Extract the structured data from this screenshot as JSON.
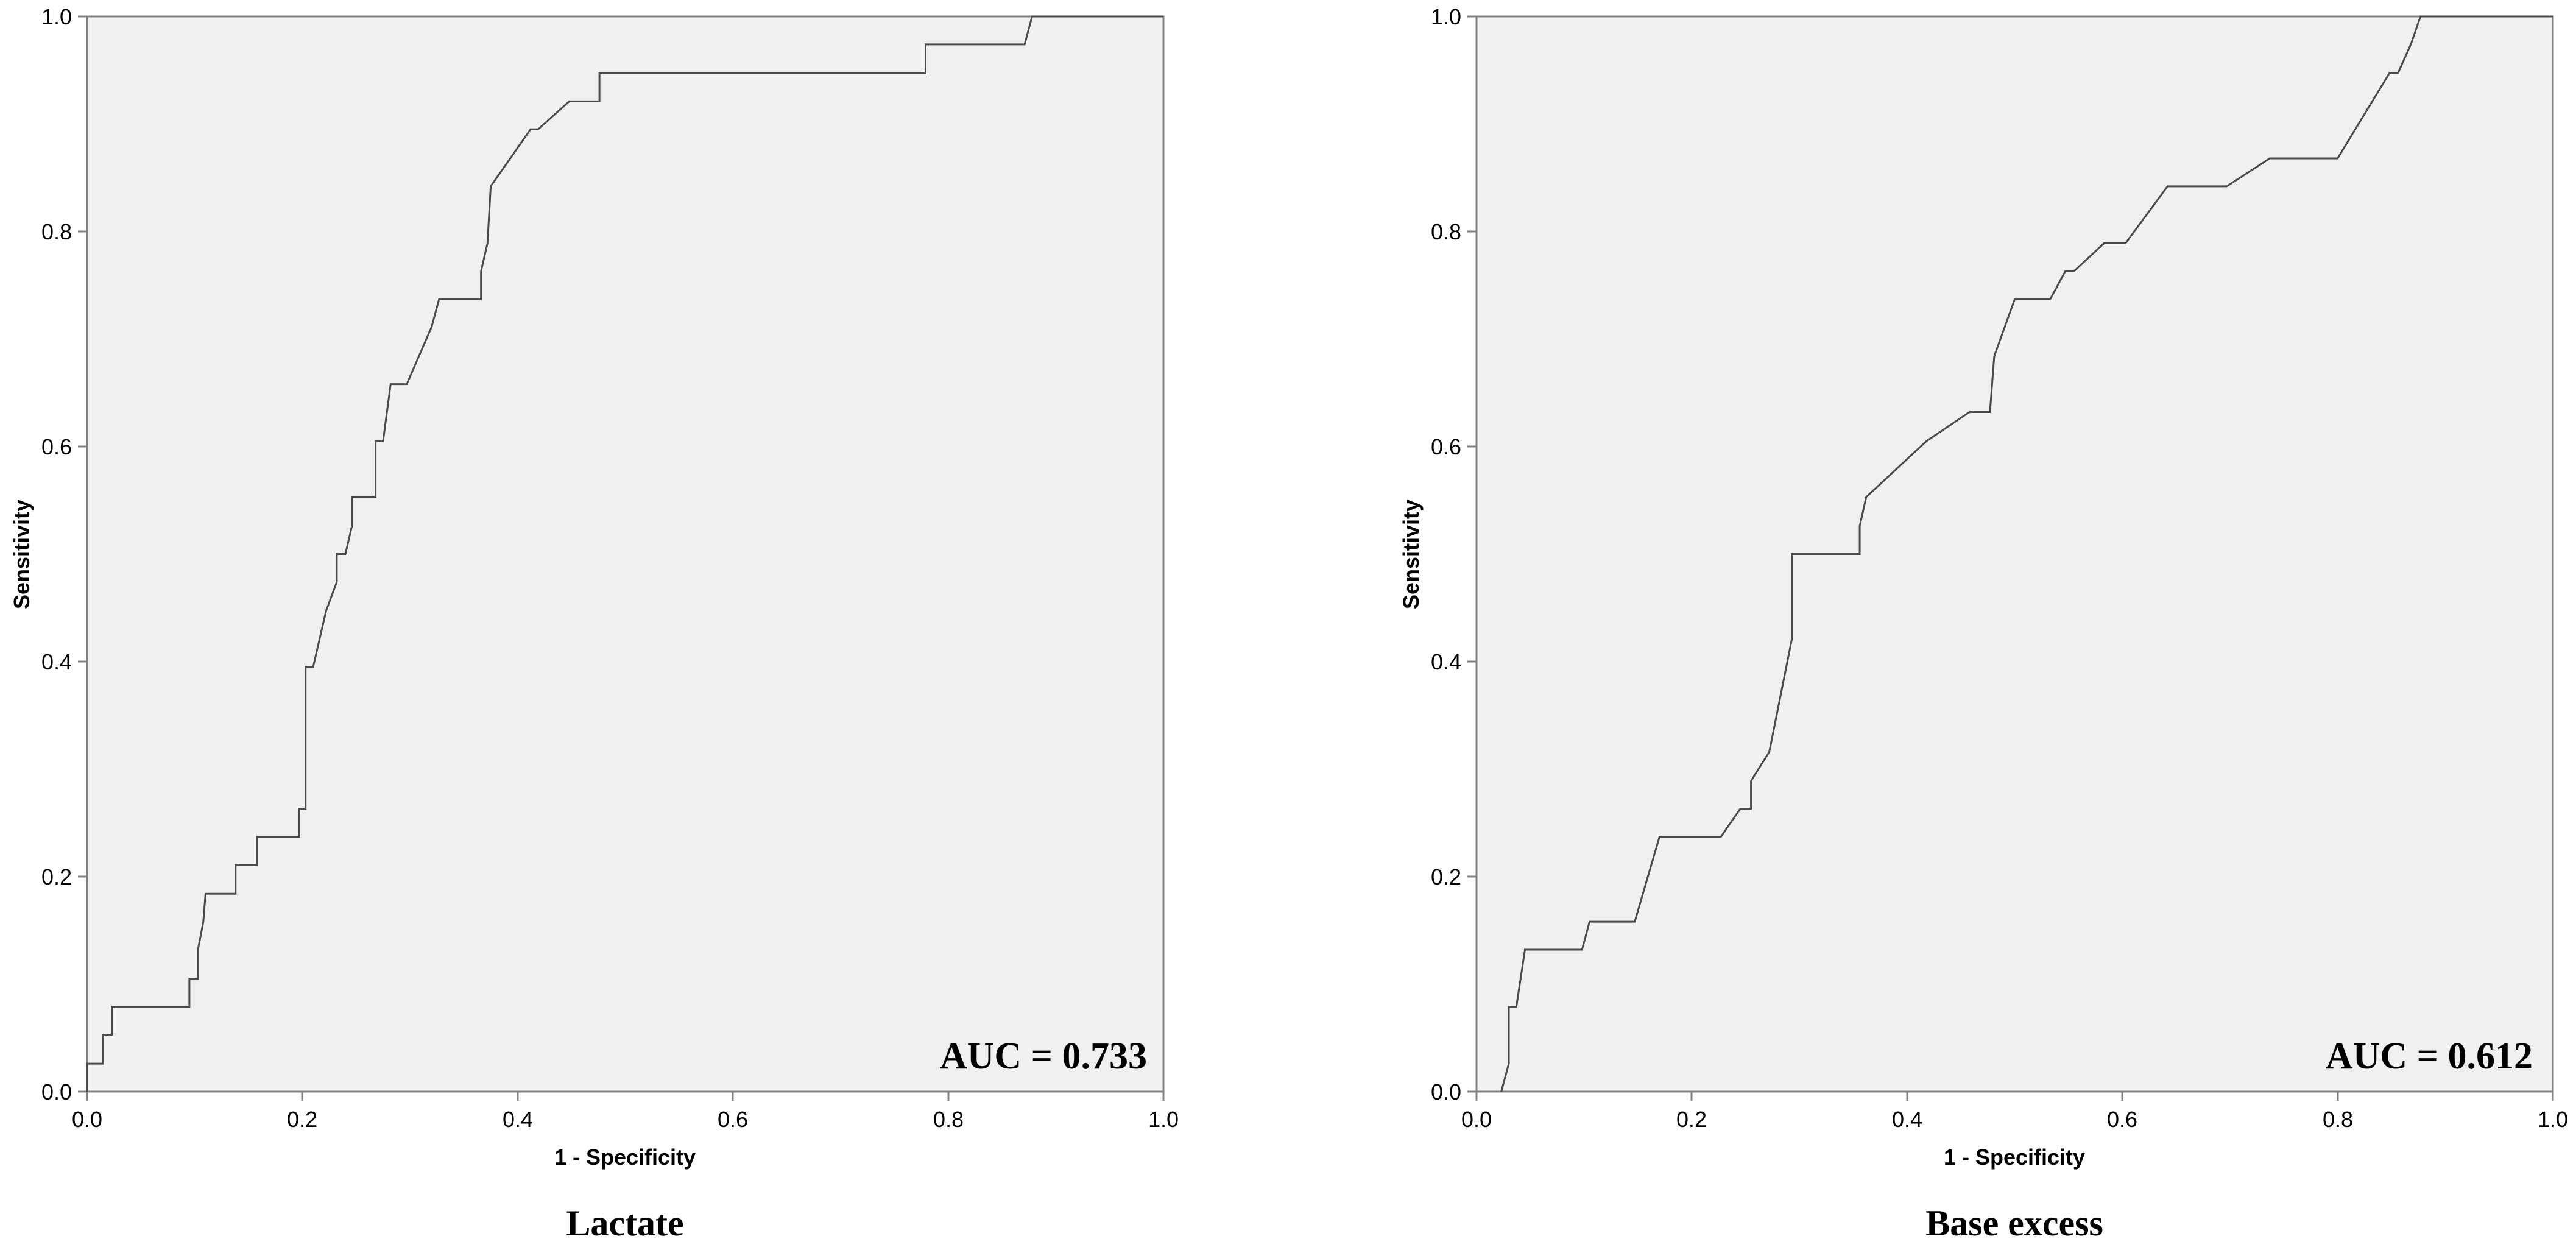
{
  "chart_data": [
    {
      "type": "line",
      "caption": "Lactate",
      "annotation": "AUC = 0.733",
      "xlabel": "1 - Specificity",
      "ylabel": "Sensitivity",
      "xlim": [
        0,
        1
      ],
      "ylim": [
        0,
        1
      ],
      "xticks": [
        "0.0",
        "0.2",
        "0.4",
        "0.6",
        "0.8",
        "1.0"
      ],
      "yticks": [
        "0.0",
        "0.2",
        "0.4",
        "0.6",
        "0.8",
        "1.0"
      ],
      "grid": false,
      "colors": {
        "plot_bg": "#f0f0f0",
        "line": "#4a4a4a",
        "frame": "#808080"
      },
      "series": [
        {
          "points": [
            [
              0.0,
              0.0
            ],
            [
              0.0,
              0.026
            ],
            [
              0.015,
              0.026
            ],
            [
              0.015,
              0.053
            ],
            [
              0.023,
              0.053
            ],
            [
              0.023,
              0.079
            ],
            [
              0.095,
              0.079
            ],
            [
              0.095,
              0.105
            ],
            [
              0.103,
              0.105
            ],
            [
              0.103,
              0.132
            ],
            [
              0.108,
              0.158
            ],
            [
              0.11,
              0.184
            ],
            [
              0.138,
              0.184
            ],
            [
              0.138,
              0.211
            ],
            [
              0.158,
              0.211
            ],
            [
              0.158,
              0.237
            ],
            [
              0.197,
              0.237
            ],
            [
              0.197,
              0.263
            ],
            [
              0.203,
              0.263
            ],
            [
              0.203,
              0.395
            ],
            [
              0.21,
              0.395
            ],
            [
              0.222,
              0.447
            ],
            [
              0.232,
              0.474
            ],
            [
              0.232,
              0.5
            ],
            [
              0.24,
              0.5
            ],
            [
              0.246,
              0.526
            ],
            [
              0.246,
              0.553
            ],
            [
              0.268,
              0.553
            ],
            [
              0.268,
              0.605
            ],
            [
              0.275,
              0.605
            ],
            [
              0.282,
              0.658
            ],
            [
              0.297,
              0.658
            ],
            [
              0.32,
              0.711
            ],
            [
              0.327,
              0.737
            ],
            [
              0.366,
              0.737
            ],
            [
              0.366,
              0.763
            ],
            [
              0.372,
              0.789
            ],
            [
              0.375,
              0.842
            ],
            [
              0.412,
              0.895
            ],
            [
              0.419,
              0.895
            ],
            [
              0.448,
              0.921
            ],
            [
              0.476,
              0.921
            ],
            [
              0.476,
              0.947
            ],
            [
              0.779,
              0.947
            ],
            [
              0.779,
              0.974
            ],
            [
              0.871,
              0.974
            ],
            [
              0.878,
              1.0
            ],
            [
              1.0,
              1.0
            ]
          ]
        }
      ]
    },
    {
      "type": "line",
      "caption": "Base excess",
      "annotation": "AUC = 0.612",
      "xlabel": "1 - Specificity",
      "ylabel": "Sensitivity",
      "xlim": [
        0,
        1
      ],
      "ylim": [
        0,
        1
      ],
      "xticks": [
        "0.0",
        "0.2",
        "0.4",
        "0.6",
        "0.8",
        "1.0"
      ],
      "yticks": [
        "0.0",
        "0.2",
        "0.4",
        "0.6",
        "0.8",
        "1.0"
      ],
      "grid": false,
      "colors": {
        "plot_bg": "#f0f0f0",
        "line": "#4a4a4a",
        "frame": "#808080"
      },
      "series": [
        {
          "points": [
            [
              0.023,
              0.0
            ],
            [
              0.03,
              0.026
            ],
            [
              0.03,
              0.079
            ],
            [
              0.037,
              0.079
            ],
            [
              0.045,
              0.132
            ],
            [
              0.098,
              0.132
            ],
            [
              0.105,
              0.158
            ],
            [
              0.147,
              0.158
            ],
            [
              0.17,
              0.237
            ],
            [
              0.227,
              0.237
            ],
            [
              0.245,
              0.263
            ],
            [
              0.255,
              0.263
            ],
            [
              0.255,
              0.289
            ],
            [
              0.272,
              0.316
            ],
            [
              0.293,
              0.421
            ],
            [
              0.293,
              0.5
            ],
            [
              0.356,
              0.5
            ],
            [
              0.356,
              0.526
            ],
            [
              0.362,
              0.553
            ],
            [
              0.418,
              0.605
            ],
            [
              0.458,
              0.632
            ],
            [
              0.477,
              0.632
            ],
            [
              0.481,
              0.684
            ],
            [
              0.5,
              0.737
            ],
            [
              0.533,
              0.737
            ],
            [
              0.547,
              0.763
            ],
            [
              0.555,
              0.763
            ],
            [
              0.583,
              0.789
            ],
            [
              0.603,
              0.789
            ],
            [
              0.642,
              0.842
            ],
            [
              0.697,
              0.842
            ],
            [
              0.737,
              0.868
            ],
            [
              0.8,
              0.868
            ],
            [
              0.848,
              0.947
            ],
            [
              0.856,
              0.947
            ],
            [
              0.868,
              0.974
            ],
            [
              0.877,
              1.0
            ],
            [
              1.0,
              1.0
            ]
          ]
        }
      ]
    }
  ]
}
